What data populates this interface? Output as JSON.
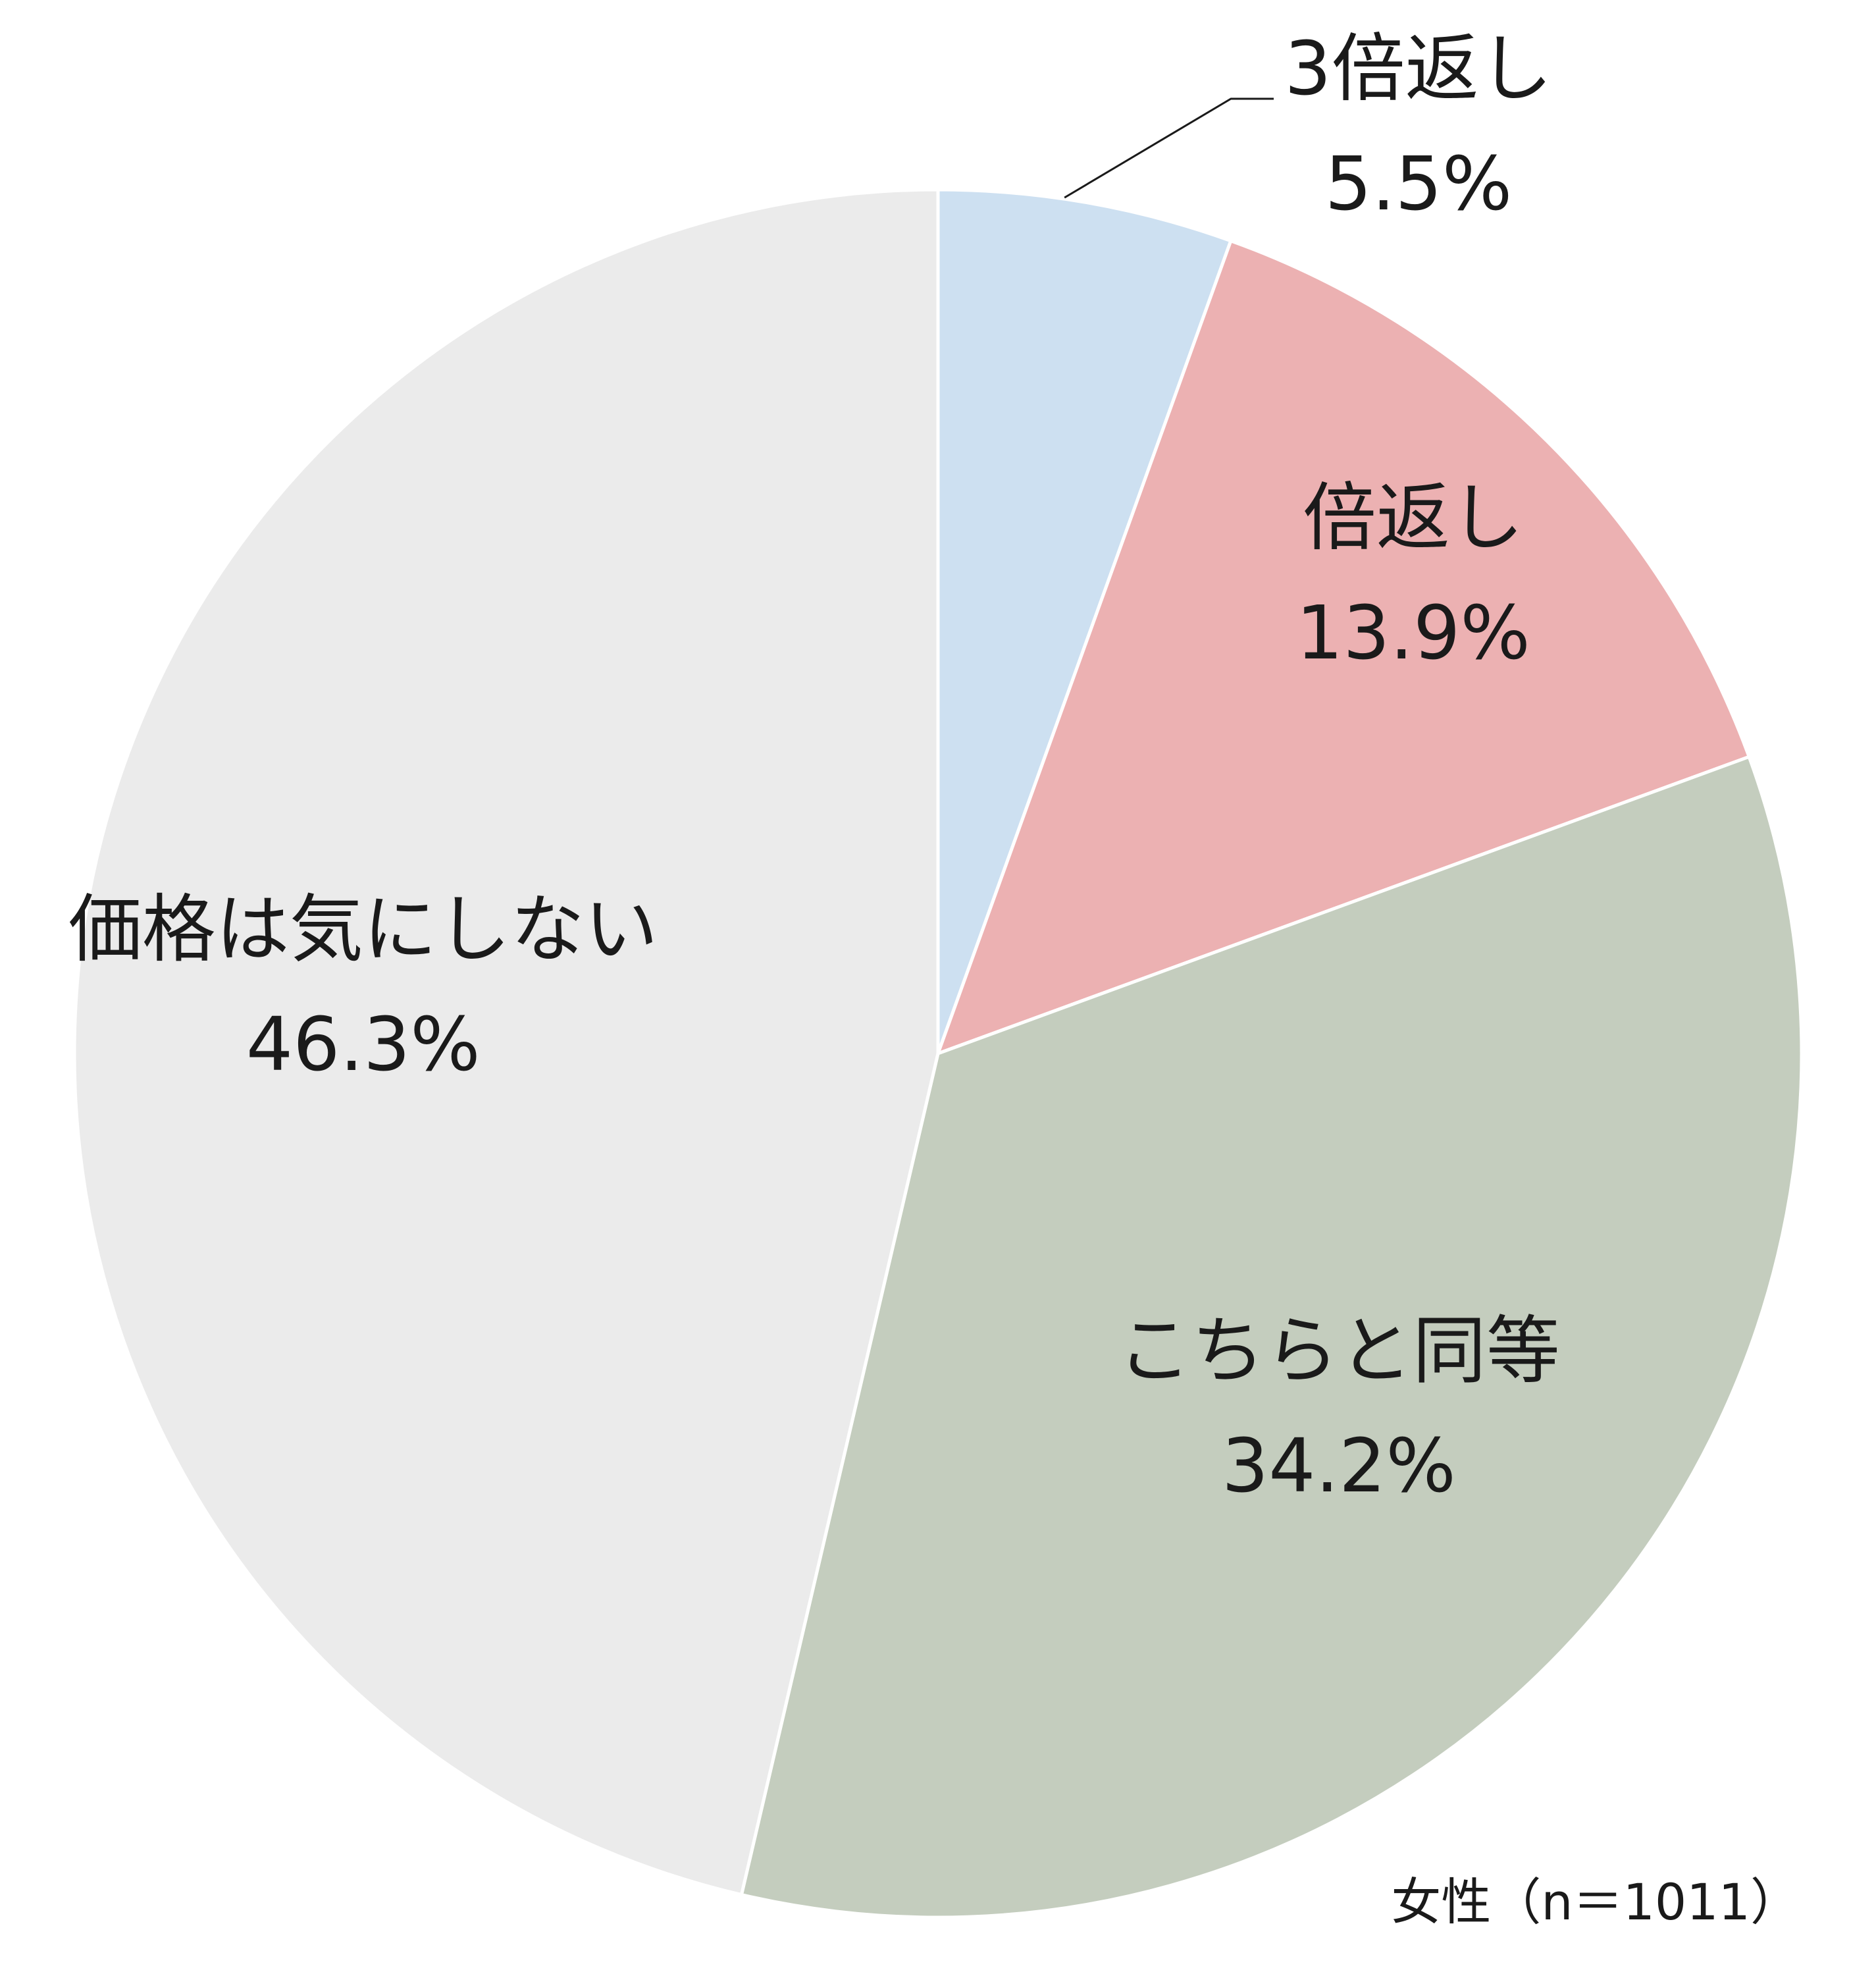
{
  "chart_data": {
    "type": "pie",
    "note": "女性（n＝1011）",
    "start_angle": "12 o'clock",
    "direction": "clockwise",
    "slices": [
      {
        "label": "3倍返し",
        "value": 5.5,
        "value_label": "5.5%",
        "color": "#cde0f1"
      },
      {
        "label": "倍返し",
        "value": 13.9,
        "value_label": "13.9%",
        "color": "#ecb1b2"
      },
      {
        "label": "こちらと同等",
        "value": 34.2,
        "value_label": "34.2%",
        "color": "#c4cdbe"
      },
      {
        "label": "価格は気にしない",
        "value": 46.3,
        "value_label": "46.3%",
        "color": "#ebebeb"
      }
    ]
  }
}
